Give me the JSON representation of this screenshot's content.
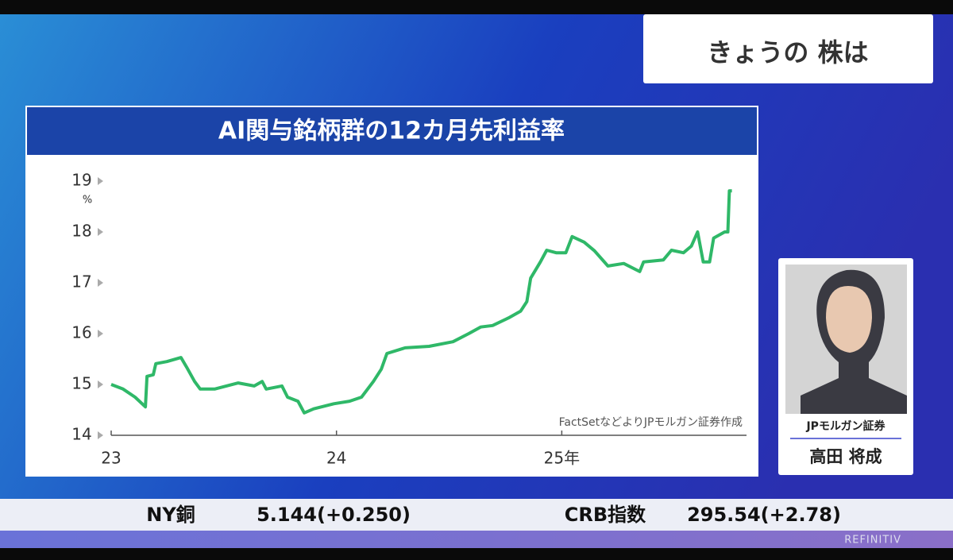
{
  "header": {
    "title": "きょうの 株は"
  },
  "chart_data": {
    "type": "line",
    "title": "AI関与銘柄群の12カ月先利益率",
    "y_unit": "%",
    "source": "FactSetなどよりJPモルガン証券作成",
    "color": "#2fb868",
    "x": [
      23.0,
      23.053,
      23.106,
      23.152,
      23.159,
      23.187,
      23.198,
      23.247,
      23.31,
      23.335,
      23.37,
      23.395,
      23.459,
      23.564,
      23.635,
      23.67,
      23.688,
      23.758,
      23.783,
      23.829,
      23.857,
      23.899,
      23.988,
      24.058,
      24.111,
      24.164,
      24.199,
      24.224,
      24.305,
      24.411,
      24.517,
      24.587,
      24.64,
      24.693,
      24.764,
      24.817,
      24.845,
      24.862,
      24.905,
      24.933,
      24.975,
      25.018,
      25.046,
      25.099,
      25.145,
      25.205,
      25.275,
      25.346,
      25.363,
      25.451,
      25.487,
      25.54,
      25.575,
      25.603,
      25.628,
      25.656,
      25.674,
      25.723,
      25.737,
      25.744,
      25.755
    ],
    "values": [
      15.0,
      14.91,
      14.75,
      14.56,
      15.16,
      15.19,
      15.41,
      15.45,
      15.53,
      15.34,
      15.06,
      14.91,
      14.91,
      15.03,
      14.97,
      15.06,
      14.91,
      14.97,
      14.75,
      14.67,
      14.44,
      14.52,
      14.62,
      14.67,
      14.75,
      15.06,
      15.3,
      15.61,
      15.72,
      15.75,
      15.84,
      16.0,
      16.13,
      16.16,
      16.31,
      16.44,
      16.63,
      17.09,
      17.41,
      17.64,
      17.59,
      17.59,
      17.91,
      17.8,
      17.63,
      17.33,
      17.38,
      17.22,
      17.41,
      17.45,
      17.64,
      17.59,
      17.72,
      18.0,
      17.41,
      17.41,
      17.88,
      18.0,
      18.0,
      18.81,
      18.81
    ],
    "xlim": [
      23,
      25.82
    ],
    "xticks": [
      23,
      24,
      {
        "value": 25,
        "label": "25年"
      }
    ],
    "ylim": [
      14,
      19
    ],
    "yticks": [
      14,
      15,
      16,
      17,
      18,
      19
    ]
  },
  "presenter": {
    "company": "JPモルガン証券",
    "name": "高田 将成"
  },
  "ticker": [
    {
      "label": "NY銅",
      "value": "5.144(+0.250)"
    },
    {
      "label": "CRB指数",
      "value": "295.54(+2.78)"
    }
  ],
  "footer": {
    "brand": "REFINITIV"
  }
}
